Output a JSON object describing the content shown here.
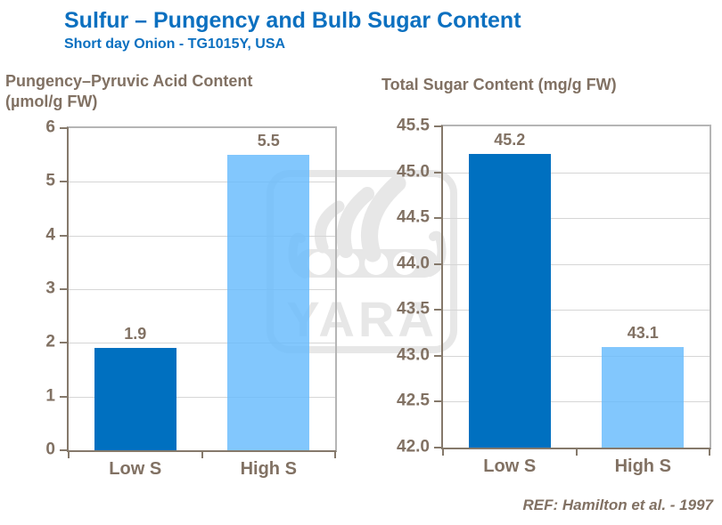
{
  "page": {
    "title": "Sulfur – Pungency and Bulb Sugar Content",
    "subtitle": "Short day Onion - TG1015Y, USA",
    "reference": "REF: Hamilton et al. - 1997",
    "watermark_text": "YARA"
  },
  "colors": {
    "title_blue": "#0C70C0",
    "dark_bar": "#0070C0",
    "light_bar": "#66BBFC",
    "label_brown": "#817163",
    "gridline": "#D6D6D6",
    "axis": "#85796B",
    "watermark": "#E7E7E7"
  },
  "chart_data": [
    {
      "type": "bar",
      "title": "Pungency–Pyruvic Acid Content\n(µmol/g FW)",
      "categories": [
        "Low S",
        "High S"
      ],
      "values": [
        1.9,
        5.5
      ],
      "labels": [
        "1.9",
        "5.5"
      ],
      "bar_colors": [
        "#0070C0",
        "#66BBFC"
      ],
      "ylim": [
        0,
        6
      ],
      "yticks": [
        0,
        1,
        2,
        3,
        4,
        5,
        6
      ],
      "ytick_labels": [
        "0",
        "1",
        "2",
        "3",
        "4",
        "5",
        "6"
      ],
      "xlabel": "",
      "ylabel": "µmol/g FW",
      "grid": true,
      "legend": "none"
    },
    {
      "type": "bar",
      "title": "Total Sugar Content (mg/g FW)",
      "categories": [
        "Low S",
        "High S"
      ],
      "values": [
        45.2,
        43.1
      ],
      "labels": [
        "45.2",
        "43.1"
      ],
      "bar_colors": [
        "#0070C0",
        "#66BBFC"
      ],
      "ylim": [
        42.0,
        45.5
      ],
      "yticks": [
        42.0,
        42.5,
        43.0,
        43.5,
        44.0,
        44.5,
        45.0,
        45.5
      ],
      "ytick_labels": [
        "42.0",
        "42.5",
        "43.0",
        "43.5",
        "44.0",
        "44.5",
        "45.0",
        "45.5"
      ],
      "xlabel": "",
      "ylabel": "mg/g FW",
      "grid": true,
      "legend": "none"
    }
  ]
}
